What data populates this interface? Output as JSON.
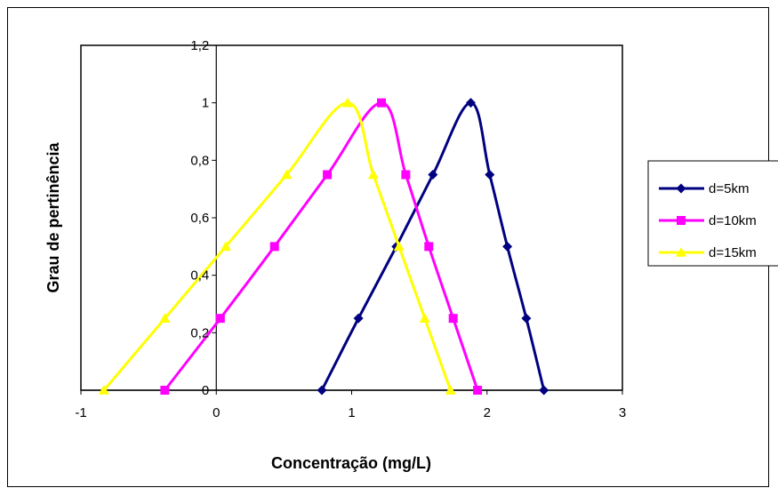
{
  "chart_data": {
    "type": "line",
    "title": "",
    "xlabel": "Concentração (mg/L)",
    "ylabel": "Grau de pertinência",
    "xlim": [
      -1,
      3
    ],
    "ylim": [
      0,
      1.2
    ],
    "xticks": [
      "-1",
      "0",
      "1",
      "2",
      "3"
    ],
    "yticks": [
      "0",
      "0,2",
      "0,4",
      "0,6",
      "0,8",
      "1",
      "1,2"
    ],
    "grid": false,
    "legend_position": "right",
    "series": [
      {
        "name": "d=5km",
        "color": "#000080",
        "marker": "diamond",
        "points": [
          [
            0.78,
            0
          ],
          [
            1.05,
            0.25
          ],
          [
            1.33,
            0.5
          ],
          [
            1.6,
            0.75
          ],
          [
            1.88,
            1.0
          ],
          [
            2.02,
            0.75
          ],
          [
            2.15,
            0.5
          ],
          [
            2.29,
            0.25
          ],
          [
            2.42,
            0
          ]
        ]
      },
      {
        "name": "d=10km",
        "color": "#FF00FF",
        "marker": "square",
        "points": [
          [
            -0.38,
            0
          ],
          [
            0.03,
            0.25
          ],
          [
            0.43,
            0.5
          ],
          [
            0.82,
            0.75
          ],
          [
            1.22,
            1.0
          ],
          [
            1.4,
            0.75
          ],
          [
            1.57,
            0.5
          ],
          [
            1.75,
            0.25
          ],
          [
            1.93,
            0
          ]
        ]
      },
      {
        "name": "d=15km",
        "color": "#FFFF00",
        "marker": "triangle",
        "points": [
          [
            -0.83,
            0
          ],
          [
            -0.38,
            0.25
          ],
          [
            0.07,
            0.5
          ],
          [
            0.52,
            0.75
          ],
          [
            0.97,
            1.0
          ],
          [
            1.16,
            0.75
          ],
          [
            1.35,
            0.5
          ],
          [
            1.54,
            0.25
          ],
          [
            1.73,
            0
          ]
        ]
      }
    ]
  }
}
